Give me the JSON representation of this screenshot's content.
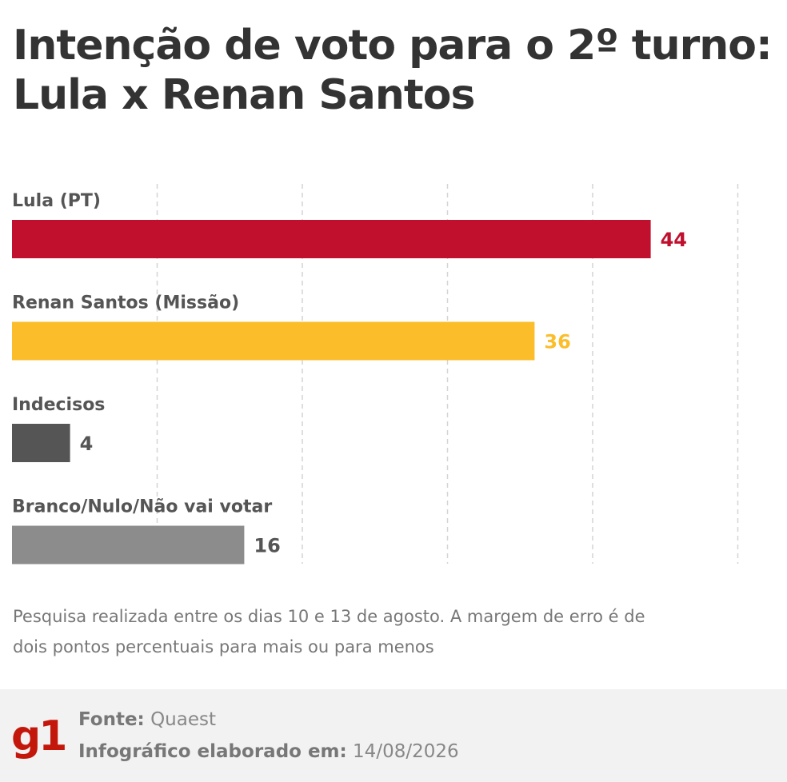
{
  "title": "Intenção de voto para o 2º turno: Lula x Renan Santos",
  "chart_data": {
    "type": "bar",
    "orientation": "horizontal",
    "categories": [
      "Lula (PT)",
      "Renan Santos (Missão)",
      "Indecisos",
      "Branco/Nulo/Não vai votar"
    ],
    "values": [
      44,
      36,
      4,
      16
    ],
    "colors": [
      "#c0102e",
      "#fbbd2a",
      "#555555",
      "#8c8c8c"
    ],
    "xlim": [
      0,
      50
    ],
    "grid": true,
    "title": "Intenção de voto para o 2º turno: Lula x Renan Santos"
  },
  "note": "Pesquisa realizada entre os dias 10 e 13 de agosto. A margem de erro é de dois pontos percentuais para mais ou para menos",
  "footer": {
    "logo": "g1",
    "logo_color": "#c4170c",
    "source_key": "Fonte:",
    "source_value": "Quaest",
    "date_key": "Infográfico elaborado em:",
    "date_value": "14/08/2026"
  }
}
